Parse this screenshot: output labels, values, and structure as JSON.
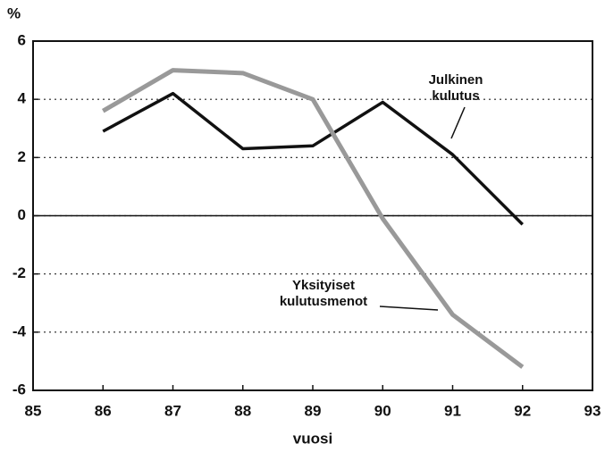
{
  "chart_data": {
    "type": "line",
    "y_label": "%",
    "x_label": "vuosi",
    "x": [
      86,
      87,
      88,
      89,
      90,
      91,
      92
    ],
    "series": [
      {
        "name": "Julkinen kulutus",
        "color": "#111111",
        "values": [
          2.9,
          4.2,
          2.3,
          2.4,
          3.9,
          2.1,
          -0.3
        ]
      },
      {
        "name": "Yksityiset kulutusmenot",
        "color": "#999999",
        "values": [
          3.6,
          5.0,
          4.9,
          4.0,
          -0.1,
          -3.4,
          -5.2
        ]
      }
    ],
    "xlim": [
      85,
      93
    ],
    "xticks": [
      85,
      86,
      87,
      88,
      89,
      90,
      91,
      92,
      93
    ],
    "ylim": [
      -6,
      6
    ],
    "yticks": [
      6,
      4,
      2,
      0,
      -2,
      -4,
      -6
    ],
    "grid": true
  }
}
